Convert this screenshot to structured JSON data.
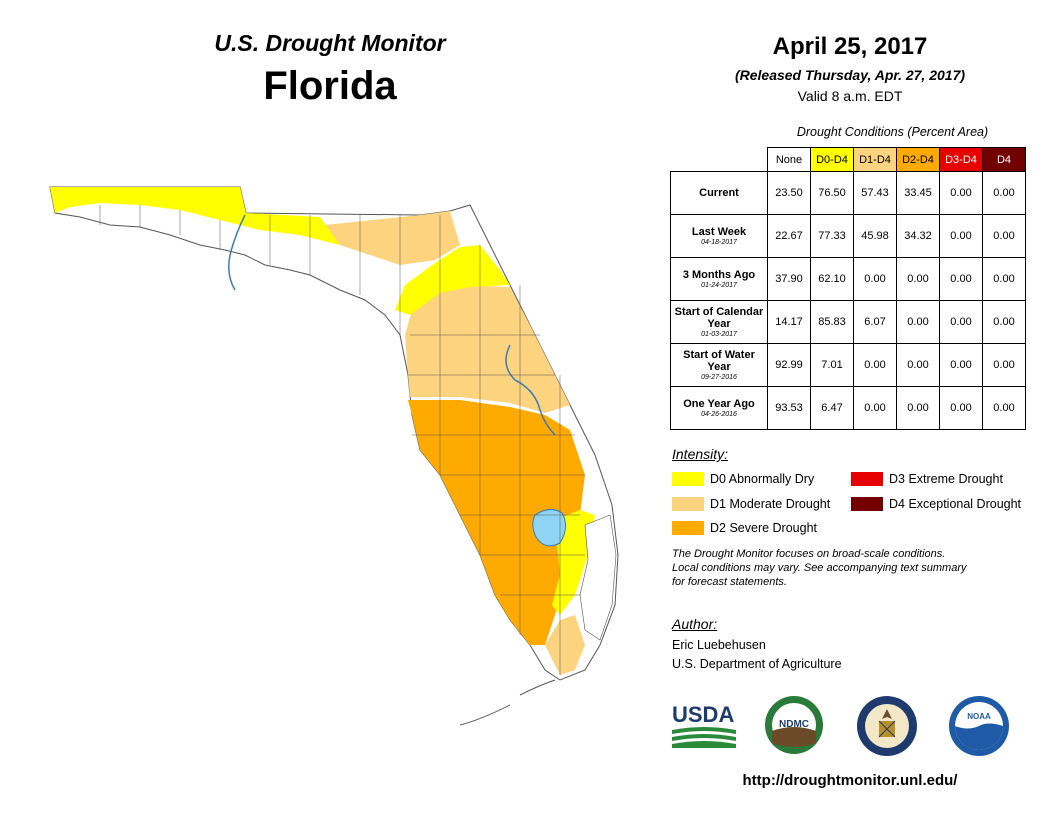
{
  "header": {
    "monitor_title": "U.S. Drought Monitor",
    "state": "Florida",
    "date": "April 25, 2017",
    "released": "(Released Thursday, Apr. 27, 2017)",
    "valid": "Valid 8 a.m. EDT"
  },
  "conditions": {
    "title": "Drought Conditions (Percent Area)",
    "columns": [
      "None",
      "D0-D4",
      "D1-D4",
      "D2-D4",
      "D3-D4",
      "D4"
    ],
    "rows": [
      {
        "label": "Current",
        "date": "",
        "values": [
          "23.50",
          "76.50",
          "57.43",
          "33.45",
          "0.00",
          "0.00"
        ]
      },
      {
        "label": "Last Week",
        "date": "04-18-2017",
        "values": [
          "22.67",
          "77.33",
          "45.98",
          "34.32",
          "0.00",
          "0.00"
        ]
      },
      {
        "label": "3 Months Ago",
        "date": "01-24-2017",
        "values": [
          "37.90",
          "62.10",
          "0.00",
          "0.00",
          "0.00",
          "0.00"
        ]
      },
      {
        "label": "Start of Calendar Year",
        "date": "01-03-2017",
        "values": [
          "14.17",
          "85.83",
          "6.07",
          "0.00",
          "0.00",
          "0.00"
        ]
      },
      {
        "label": "Start of Water Year",
        "date": "09-27-2016",
        "values": [
          "92.99",
          "7.01",
          "0.00",
          "0.00",
          "0.00",
          "0.00"
        ]
      },
      {
        "label": "One Year Ago",
        "date": "04-26-2016",
        "values": [
          "93.53",
          "6.47",
          "0.00",
          "0.00",
          "0.00",
          "0.00"
        ]
      }
    ]
  },
  "intensity": {
    "title": "Intensity:",
    "items": [
      {
        "label": "D0 Abnormally Dry",
        "color": "#ffff00"
      },
      {
        "label": "D1 Moderate Drought",
        "color": "#fcd37f"
      },
      {
        "label": "D2 Severe Drought",
        "color": "#ffaa00"
      },
      {
        "label": "D3 Extreme Drought",
        "color": "#e60000"
      },
      {
        "label": "D4 Exceptional Drought",
        "color": "#730000"
      }
    ]
  },
  "note": {
    "line1": "The Drought Monitor focuses on broad-scale conditions.",
    "line2": "Local conditions may vary. See accompanying text summary",
    "line3": "for forecast statements."
  },
  "author": {
    "title": "Author:",
    "name": "Eric Luebehusen",
    "org": "U.S. Department of Agriculture"
  },
  "logos": {
    "usda": "USDA",
    "ndmc": "NDMC",
    "noaa": "NOAA"
  },
  "url": "http://droughtmonitor.unl.edu/",
  "colors": {
    "header_none": "#ffffff",
    "header_d0": "#ffff00",
    "header_d1": "#fcd37f",
    "header_d2": "#ffaa00",
    "header_d3": "#e60000",
    "header_d4": "#730000",
    "water": "#8fd3f5"
  }
}
